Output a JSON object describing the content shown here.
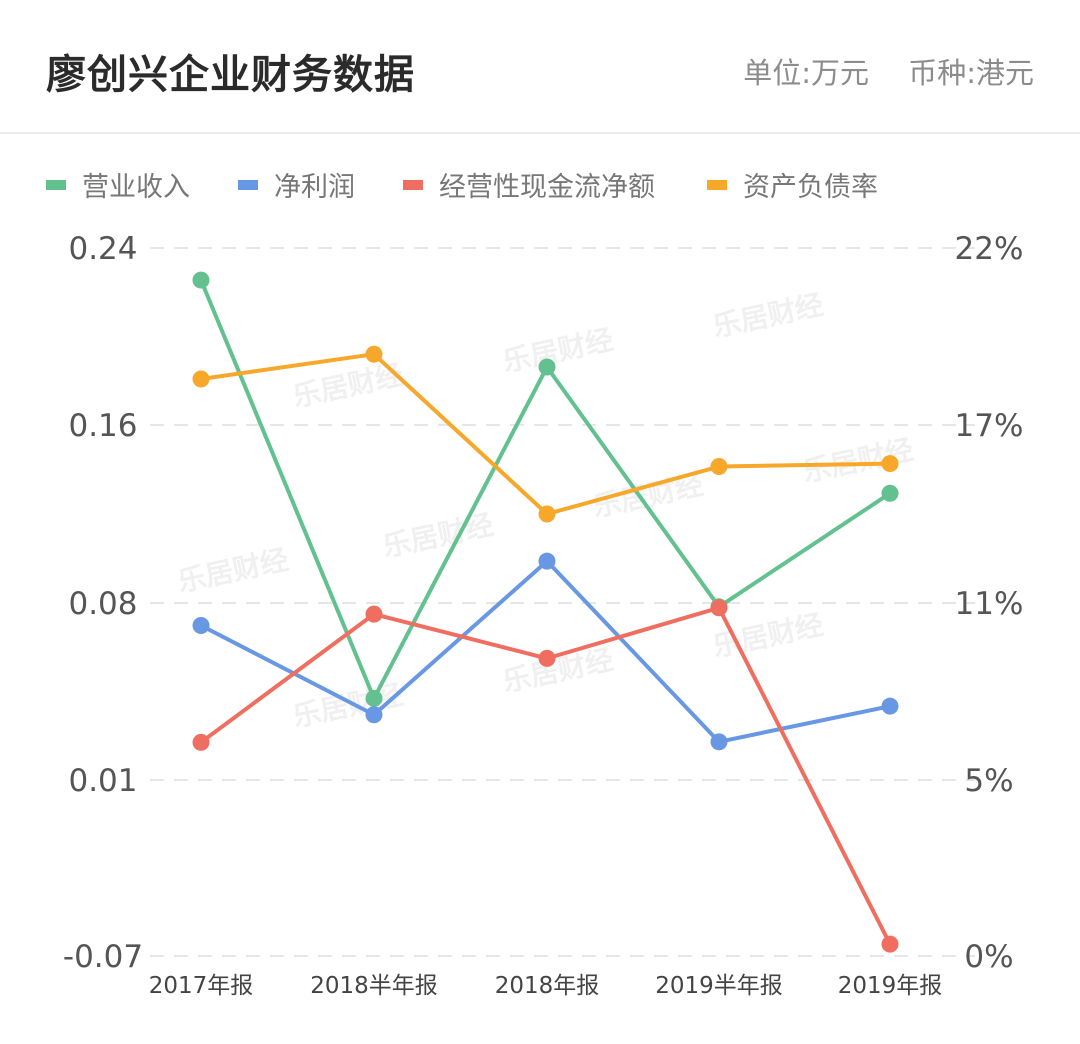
{
  "header": {
    "title": "廖创兴企业财务数据",
    "unit": "单位:万元",
    "currency": "币种:港元"
  },
  "watermark": "乐居财经",
  "chart_data": {
    "type": "line",
    "categories": [
      "2017年报",
      "2018半年报",
      "2018年报",
      "2019半年报",
      "2019年报"
    ],
    "left_axis": {
      "ticks": [
        "0.24",
        "0.16",
        "0.08",
        "0.01",
        "-0.07"
      ],
      "range": [
        -0.07,
        0.24
      ]
    },
    "right_axis": {
      "ticks": [
        "22%",
        "17%",
        "11%",
        "5%",
        "0%"
      ],
      "range": [
        0,
        22
      ]
    },
    "grid": true,
    "legend_position": "top-left",
    "series": [
      {
        "name": "营业收入",
        "color": "#62c18f",
        "axis": "left",
        "values": [
          0.2255,
          0.0423,
          0.1862,
          0.0785,
          0.1293
        ]
      },
      {
        "name": "净利润",
        "color": "#6898e4",
        "axis": "left",
        "values": [
          0.0711,
          0.0358,
          0.0988,
          0.0251,
          0.0392
        ]
      },
      {
        "name": "经营性现金流净额",
        "color": "#ef6e5f",
        "axis": "left",
        "values": [
          0.0249,
          0.0756,
          0.0581,
          0.0781,
          -0.0646
        ]
      },
      {
        "name": "资产负债率",
        "color": "#f7a729",
        "axis": "right",
        "values": [
          18.3,
          19.0,
          14.0,
          15.6,
          15.7
        ]
      }
    ]
  }
}
